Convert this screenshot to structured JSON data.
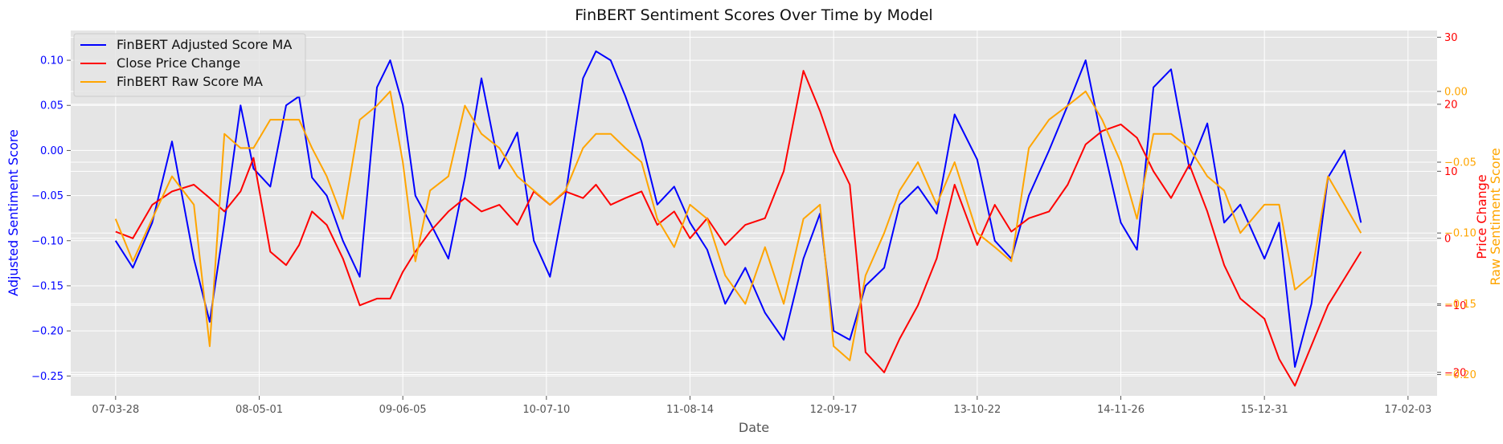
{
  "chart_data": {
    "type": "line",
    "title": "FinBERT Sentiment Scores Over Time by Model",
    "xlabel": "Date",
    "ylabel_left": "Adjusted Sentiment Score",
    "ylabel_right_1": "Price Change",
    "ylabel_right_2": "Raw Sentiment Score",
    "x_ticks": [
      "07-03-28",
      "08-05-01",
      "09-06-05",
      "10-07-10",
      "11-08-14",
      "12-09-17",
      "13-10-22",
      "14-11-26",
      "15-12-31",
      "17-02-03"
    ],
    "xlim": [
      "2006-11-23",
      "2017-04-25"
    ],
    "y_left": {
      "lim": [
        -0.272,
        0.133
      ],
      "ticks": [
        -0.25,
        -0.2,
        -0.15,
        -0.1,
        -0.05,
        0.0,
        0.05,
        0.1
      ],
      "tick_labels": [
        "−0.25",
        "−0.20",
        "−0.15",
        "−0.10",
        "−0.05",
        "0.00",
        "0.05",
        "0.10"
      ],
      "color": "#0000ff"
    },
    "y_right_price": {
      "lim": [
        -23.5,
        31.0
      ],
      "ticks": [
        -20,
        -10,
        0,
        10,
        20,
        30
      ],
      "tick_labels": [
        "−20",
        "−10",
        "0",
        "10",
        "20",
        "30"
      ],
      "color": "#ff0000"
    },
    "y_right_raw": {
      "lim": [
        -0.215,
        0.043
      ],
      "ticks": [
        -0.2,
        -0.15,
        -0.1,
        -0.05,
        0.0
      ],
      "tick_labels": [
        "−0.20",
        "−0.15",
        "−0.10",
        "−0.05",
        "0.00"
      ],
      "color": "#ffa500"
    },
    "grid": true,
    "legend_position": "upper-left",
    "series": [
      {
        "name": "FinBERT Adjusted Score MA",
        "axis": "left",
        "color": "#0000ff",
        "x": [
          "2007-03-28",
          "2007-05-15",
          "2007-07-08",
          "2007-09-01",
          "2007-11-01",
          "2007-12-15",
          "2008-01-25",
          "2008-03-10",
          "2008-04-15",
          "2008-06-01",
          "2008-07-15",
          "2008-08-20",
          "2008-09-25",
          "2008-11-05",
          "2008-12-20",
          "2009-02-05",
          "2009-03-25",
          "2009-05-01",
          "2009-06-05",
          "2009-07-10",
          "2009-08-20",
          "2009-10-10",
          "2009-11-25",
          "2010-01-10",
          "2010-03-01",
          "2010-04-20",
          "2010-06-05",
          "2010-07-20",
          "2010-09-01",
          "2010-10-20",
          "2010-11-25",
          "2011-01-05",
          "2011-02-15",
          "2011-04-01",
          "2011-05-15",
          "2011-07-01",
          "2011-08-14",
          "2011-10-01",
          "2011-11-20",
          "2012-01-15",
          "2012-03-10",
          "2012-05-01",
          "2012-06-25",
          "2012-08-10",
          "2012-09-17",
          "2012-11-01",
          "2012-12-15",
          "2013-02-05",
          "2013-03-20",
          "2013-05-10",
          "2013-07-01",
          "2013-08-20",
          "2013-10-22",
          "2013-12-10",
          "2014-01-25",
          "2014-03-15",
          "2014-05-10",
          "2014-07-01",
          "2014-08-20",
          "2014-10-05",
          "2014-11-26",
          "2015-01-10",
          "2015-02-25",
          "2015-04-15",
          "2015-06-05",
          "2015-07-25",
          "2015-09-10",
          "2015-10-25",
          "2015-12-31",
          "2016-02-10",
          "2016-03-25",
          "2016-05-10",
          "2016-06-25",
          "2016-08-10",
          "2016-09-25"
        ],
        "values": [
          -0.1,
          -0.13,
          -0.08,
          0.01,
          -0.12,
          -0.19,
          -0.08,
          0.05,
          -0.02,
          -0.04,
          0.05,
          0.06,
          -0.03,
          -0.05,
          -0.1,
          -0.14,
          0.07,
          0.1,
          0.05,
          -0.05,
          -0.08,
          -0.12,
          -0.03,
          0.08,
          -0.02,
          0.02,
          -0.1,
          -0.14,
          -0.05,
          0.08,
          0.11,
          0.1,
          0.06,
          0.01,
          -0.06,
          -0.04,
          -0.08,
          -0.11,
          -0.17,
          -0.13,
          -0.18,
          -0.21,
          -0.12,
          -0.07,
          -0.2,
          -0.21,
          -0.15,
          -0.13,
          -0.06,
          -0.04,
          -0.07,
          0.04,
          -0.01,
          -0.1,
          -0.12,
          -0.05,
          0.0,
          0.05,
          0.1,
          0.01,
          -0.08,
          -0.11,
          0.07,
          0.09,
          -0.02,
          0.03,
          -0.08,
          -0.06,
          -0.12,
          -0.08,
          -0.24,
          -0.17,
          -0.03,
          0.0,
          -0.08
        ]
      },
      {
        "name": "Close Price Change",
        "axis": "right_price",
        "color": "#ff0000",
        "x": [
          "2007-03-28",
          "2007-05-15",
          "2007-07-08",
          "2007-09-01",
          "2007-11-01",
          "2007-12-15",
          "2008-01-25",
          "2008-03-10",
          "2008-04-15",
          "2008-06-01",
          "2008-07-15",
          "2008-08-20",
          "2008-09-25",
          "2008-11-05",
          "2008-12-20",
          "2009-02-05",
          "2009-03-25",
          "2009-05-01",
          "2009-06-05",
          "2009-07-10",
          "2009-08-20",
          "2009-10-10",
          "2009-11-25",
          "2010-01-10",
          "2010-03-01",
          "2010-04-20",
          "2010-06-05",
          "2010-07-20",
          "2010-09-01",
          "2010-10-20",
          "2010-11-25",
          "2011-01-05",
          "2011-02-15",
          "2011-04-01",
          "2011-05-15",
          "2011-07-01",
          "2011-08-14",
          "2011-10-01",
          "2011-11-20",
          "2012-01-15",
          "2012-03-10",
          "2012-05-01",
          "2012-06-25",
          "2012-08-10",
          "2012-09-17",
          "2012-11-01",
          "2012-12-15",
          "2013-02-05",
          "2013-03-20",
          "2013-05-10",
          "2013-07-01",
          "2013-08-20",
          "2013-10-22",
          "2013-12-10",
          "2014-01-25",
          "2014-03-15",
          "2014-05-10",
          "2014-07-01",
          "2014-08-20",
          "2014-10-05",
          "2014-11-26",
          "2015-01-10",
          "2015-02-25",
          "2015-04-15",
          "2015-06-05",
          "2015-07-25",
          "2015-09-10",
          "2015-10-25",
          "2015-12-31",
          "2016-02-10",
          "2016-03-25",
          "2016-05-10",
          "2016-06-25",
          "2016-08-10",
          "2016-09-25"
        ],
        "values": [
          1,
          0,
          5,
          7,
          8,
          6,
          4,
          7,
          12,
          -2,
          -4,
          -1,
          4,
          2,
          -3,
          -10,
          -9,
          -9,
          -5,
          -2,
          1,
          4,
          6,
          4,
          5,
          2,
          7,
          5,
          7,
          6,
          8,
          5,
          6,
          7,
          2,
          4,
          0,
          3,
          -1,
          2,
          3,
          10,
          25,
          19,
          13,
          8,
          -17,
          -20,
          -15,
          -10,
          -3,
          8,
          -1,
          5,
          1,
          3,
          4,
          8,
          14,
          16,
          17,
          15,
          10,
          6,
          11,
          4,
          -4,
          -9,
          -12,
          -18,
          -22,
          -16,
          -10,
          -6,
          -2
        ]
      },
      {
        "name": "FinBERT Raw Score MA",
        "axis": "right_raw",
        "color": "#ffa500",
        "x": [
          "2007-03-28",
          "2007-05-15",
          "2007-07-08",
          "2007-09-01",
          "2007-11-01",
          "2007-12-15",
          "2008-01-25",
          "2008-03-10",
          "2008-04-15",
          "2008-06-01",
          "2008-07-15",
          "2008-08-20",
          "2008-09-25",
          "2008-11-05",
          "2008-12-20",
          "2009-02-05",
          "2009-03-25",
          "2009-05-01",
          "2009-06-05",
          "2009-07-10",
          "2009-08-20",
          "2009-10-10",
          "2009-11-25",
          "2010-01-10",
          "2010-03-01",
          "2010-04-20",
          "2010-06-05",
          "2010-07-20",
          "2010-09-01",
          "2010-10-20",
          "2010-11-25",
          "2011-01-05",
          "2011-02-15",
          "2011-04-01",
          "2011-05-15",
          "2011-07-01",
          "2011-08-14",
          "2011-10-01",
          "2011-11-20",
          "2012-01-15",
          "2012-03-10",
          "2012-05-01",
          "2012-06-25",
          "2012-08-10",
          "2012-09-17",
          "2012-11-01",
          "2012-12-15",
          "2013-02-05",
          "2013-03-20",
          "2013-05-10",
          "2013-07-01",
          "2013-08-20",
          "2013-10-22",
          "2013-12-10",
          "2014-01-25",
          "2014-03-15",
          "2014-05-10",
          "2014-07-01",
          "2014-08-20",
          "2014-10-05",
          "2014-11-26",
          "2015-01-10",
          "2015-02-25",
          "2015-04-15",
          "2015-06-05",
          "2015-07-25",
          "2015-09-10",
          "2015-10-25",
          "2015-12-31",
          "2016-02-10",
          "2016-03-25",
          "2016-05-10",
          "2016-06-25",
          "2016-08-10",
          "2016-09-25"
        ],
        "values": [
          -0.09,
          -0.12,
          -0.09,
          -0.06,
          -0.08,
          -0.18,
          -0.03,
          -0.04,
          -0.04,
          -0.02,
          -0.02,
          -0.02,
          -0.04,
          -0.06,
          -0.09,
          -0.02,
          -0.01,
          0.0,
          -0.05,
          -0.12,
          -0.07,
          -0.06,
          -0.01,
          -0.03,
          -0.04,
          -0.06,
          -0.07,
          -0.08,
          -0.07,
          -0.04,
          -0.03,
          -0.03,
          -0.04,
          -0.05,
          -0.09,
          -0.11,
          -0.08,
          -0.09,
          -0.13,
          -0.15,
          -0.11,
          -0.15,
          -0.09,
          -0.08,
          -0.18,
          -0.19,
          -0.13,
          -0.1,
          -0.07,
          -0.05,
          -0.08,
          -0.05,
          -0.1,
          -0.11,
          -0.12,
          -0.04,
          -0.02,
          -0.01,
          0.0,
          -0.02,
          -0.05,
          -0.09,
          -0.03,
          -0.03,
          -0.04,
          -0.06,
          -0.07,
          -0.1,
          -0.08,
          -0.08,
          -0.14,
          -0.13,
          -0.06,
          -0.08,
          -0.1
        ]
      }
    ]
  }
}
